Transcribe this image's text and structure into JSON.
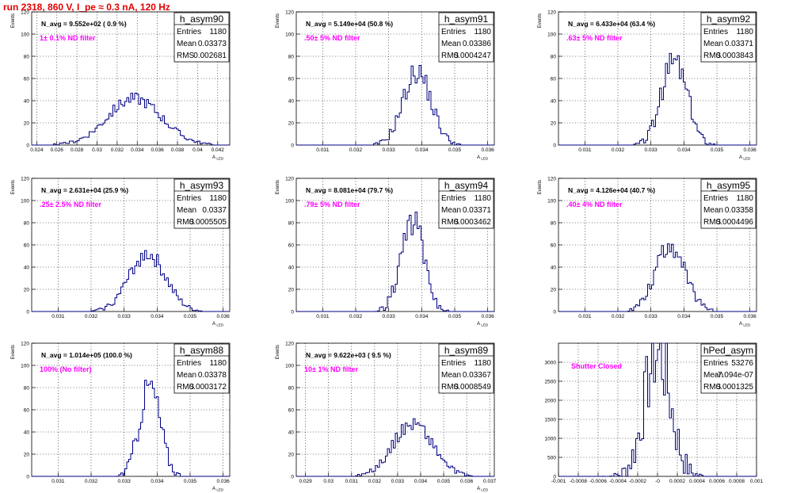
{
  "title": "run 2318,   860 V, I_pe ≈ 0.3 nA, 120 Hz",
  "chart_data": [
    {
      "type": "histogram",
      "name": "h_asym90",
      "entries": "1180",
      "mean": "0.03373",
      "rms": "0.002681",
      "annotation": "N_avg = 9.552e+02 ( 0.9 %)",
      "filter_label": "1± 0.1% ND filter",
      "xlabel": "A_LED",
      "ylabel": "Events",
      "xlim": [
        0.0235,
        0.0432
      ],
      "ylim": [
        0,
        120
      ],
      "xticks": [
        0.024,
        0.026,
        0.028,
        0.03,
        0.032,
        0.034,
        0.036,
        0.038,
        0.04,
        0.042
      ],
      "xtick_labels": [
        "0.024",
        "0.026",
        "0.028",
        "0.03",
        "0.032",
        "0.034",
        "0.036",
        "0.038",
        "0.04",
        "0.042"
      ],
      "yticks": [
        0,
        20,
        40,
        60,
        80,
        100,
        120
      ],
      "mu": 0.03373,
      "sigma": 0.002681,
      "peak": 42,
      "bins": 100,
      "seed": 90
    },
    {
      "type": "histogram",
      "name": "h_asym91",
      "entries": "1180",
      "mean": "0.03386",
      "rms": "0.0004247",
      "annotation": "N_avg = 5.149e+04 (50.8 %)",
      "filter_label": ".50± 5% ND filter",
      "xlabel": "A_LED",
      "ylabel": "Events",
      "xlim": [
        0.0302,
        0.0362
      ],
      "ylim": [
        0,
        120
      ],
      "xticks": [
        0.031,
        0.032,
        0.033,
        0.034,
        0.035,
        0.036
      ],
      "xtick_labels": [
        "0.031",
        "0.032",
        "0.033",
        "0.034",
        "0.035",
        "0.036"
      ],
      "yticks": [
        0,
        20,
        40,
        60,
        80,
        100,
        120
      ],
      "mu": 0.03386,
      "sigma": 0.0004247,
      "peak": 66,
      "bins": 100,
      "seed": 91
    },
    {
      "type": "histogram",
      "name": "h_asym92",
      "entries": "1180",
      "mean": "0.03371",
      "rms": "0.0003843",
      "annotation": "N_avg = 6.433e+04 (63.4 %)",
      "filter_label": ".63± 5% ND filter",
      "xlabel": "A_LED",
      "ylabel": "Events",
      "xlim": [
        0.0302,
        0.0362
      ],
      "ylim": [
        0,
        120
      ],
      "xticks": [
        0.031,
        0.032,
        0.033,
        0.034,
        0.035,
        0.036
      ],
      "xtick_labels": [
        "0.031",
        "0.032",
        "0.033",
        "0.034",
        "0.035",
        "0.036"
      ],
      "yticks": [
        0,
        20,
        40,
        60,
        80,
        100,
        120
      ],
      "mu": 0.03371,
      "sigma": 0.0003843,
      "peak": 76,
      "bins": 100,
      "seed": 92
    },
    {
      "type": "histogram",
      "name": "h_asym93",
      "entries": "1180",
      "mean": "0.0337",
      "rms": "0.0005505",
      "annotation": "N_avg = 2.631e+04 (25.9 %)",
      "filter_label": ".25± 2.5% ND filter",
      "xlabel": "A_LED",
      "ylabel": "Events",
      "xlim": [
        0.0302,
        0.0362
      ],
      "ylim": [
        0,
        120
      ],
      "xticks": [
        0.031,
        0.032,
        0.033,
        0.034,
        0.035,
        0.036
      ],
      "xtick_labels": [
        "0.031",
        "0.032",
        "0.033",
        "0.034",
        "0.035",
        "0.036"
      ],
      "yticks": [
        0,
        20,
        40,
        60,
        80,
        100,
        120
      ],
      "mu": 0.0337,
      "sigma": 0.0005505,
      "peak": 52,
      "bins": 100,
      "seed": 93
    },
    {
      "type": "histogram",
      "name": "h_asym94",
      "entries": "1180",
      "mean": "0.03371",
      "rms": "0.0003462",
      "annotation": "N_avg = 8.081e+04 (79.7 %)",
      "filter_label": ".79± 5% ND filter",
      "xlabel": "A_LED",
      "ylabel": "Events",
      "xlim": [
        0.0302,
        0.0362
      ],
      "ylim": [
        0,
        120
      ],
      "xticks": [
        0.031,
        0.032,
        0.033,
        0.034,
        0.035,
        0.036
      ],
      "xtick_labels": [
        "0.031",
        "0.032",
        "0.033",
        "0.034",
        "0.035",
        "0.036"
      ],
      "yticks": [
        0,
        20,
        40,
        60,
        80,
        100,
        120
      ],
      "mu": 0.03371,
      "sigma": 0.0003462,
      "peak": 82,
      "bins": 100,
      "seed": 94
    },
    {
      "type": "histogram",
      "name": "h_asym95",
      "entries": "1180",
      "mean": "0.03358",
      "rms": "0.0004496",
      "annotation": "N_avg = 4.126e+04 (40.7 %)",
      "filter_label": ".40± 4% ND filter",
      "xlabel": "A_LED",
      "ylabel": "Events",
      "xlim": [
        0.0302,
        0.0362
      ],
      "ylim": [
        0,
        120
      ],
      "xticks": [
        0.031,
        0.032,
        0.033,
        0.034,
        0.035,
        0.036
      ],
      "xtick_labels": [
        "0.031",
        "0.032",
        "0.033",
        "0.034",
        "0.035",
        "0.036"
      ],
      "yticks": [
        0,
        20,
        40,
        60,
        80,
        100,
        120
      ],
      "mu": 0.03358,
      "sigma": 0.0004496,
      "peak": 60,
      "bins": 100,
      "seed": 95
    },
    {
      "type": "histogram",
      "name": "h_asym88",
      "entries": "1180",
      "mean": "0.03378",
      "rms": "0.0003172",
      "annotation": "N_avg = 1.014e+05 (100.0 %)",
      "filter_label": "100% (No filter)",
      "xlabel": "A_LED",
      "ylabel": "Events",
      "xlim": [
        0.0302,
        0.0362
      ],
      "ylim": [
        0,
        120
      ],
      "xticks": [
        0.031,
        0.032,
        0.033,
        0.034,
        0.035,
        0.036
      ],
      "xtick_labels": [
        "0.031",
        "0.032",
        "0.033",
        "0.034",
        "0.035",
        "0.036"
      ],
      "yticks": [
        0,
        20,
        40,
        60,
        80,
        100,
        120
      ],
      "mu": 0.03378,
      "sigma": 0.0003172,
      "peak": 82,
      "bins": 100,
      "seed": 88
    },
    {
      "type": "histogram",
      "name": "h_asym89",
      "entries": "1180",
      "mean": "0.03367",
      "rms": "0.0008549",
      "annotation": "N_avg = 9.622e+03 ( 9.5 %)",
      "filter_label": "10± 1% ND filter",
      "xlabel": "A_LED",
      "ylabel": "Events",
      "xlim": [
        0.0286,
        0.0372
      ],
      "ylim": [
        0,
        120
      ],
      "xticks": [
        0.029,
        0.03,
        0.031,
        0.032,
        0.033,
        0.034,
        0.035,
        0.036,
        0.037
      ],
      "xtick_labels": [
        "0.029",
        "0.03",
        "0.031",
        "0.032",
        "0.033",
        "0.034",
        "0.035",
        "0.036",
        "0.037"
      ],
      "yticks": [
        0,
        20,
        40,
        60,
        80,
        100,
        120
      ],
      "mu": 0.03367,
      "sigma": 0.0008549,
      "peak": 48,
      "bins": 100,
      "seed": 89
    },
    {
      "type": "histogram",
      "name": "hPed_asym",
      "entries": "53276",
      "mean": "-7.094e-07",
      "rms": "0.0001325",
      "annotation": "",
      "filter_label": "Shutter Closed",
      "xlabel": "",
      "ylabel": "",
      "xlim": [
        -0.001,
        0.001
      ],
      "ylim": [
        0,
        3500
      ],
      "xticks": [
        -0.001,
        -0.0008,
        -0.0006,
        -0.0004,
        -0.0002,
        0,
        0.0002,
        0.0004,
        0.0006,
        0.0008,
        0.001
      ],
      "xtick_labels": [
        "-0.001",
        "-0.0008",
        "-0.0006",
        "-0.0004",
        "-0.0002",
        "-0",
        "0.0002",
        "0.0004",
        "0.0006",
        "0.0008",
        "0.001"
      ],
      "yticks": [
        0,
        500,
        1000,
        1500,
        2000,
        2500,
        3000
      ],
      "mu": 0.0,
      "sigma": 0.0001325,
      "peak": 3230,
      "bins": 100,
      "seed": 7
    }
  ],
  "colors": {
    "histogram_line": "#000080",
    "title": "#e00000",
    "filter_label": "#ff00ff"
  }
}
